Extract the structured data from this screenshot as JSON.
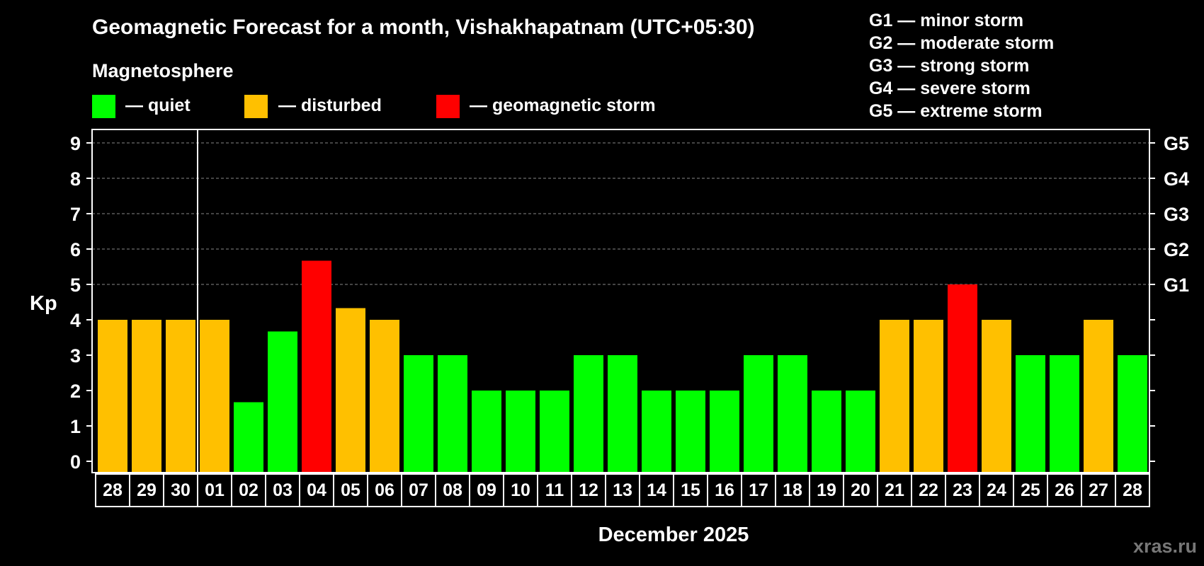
{
  "title": "Geomagnetic Forecast for a month, Vishakhapatnam (UTC+05:30)",
  "subtitle": "Magnetosphere",
  "legend": [
    {
      "label": "— quiet",
      "color": "#00ff00"
    },
    {
      "label": "— disturbed",
      "color": "#ffc000"
    },
    {
      "label": "— geomagnetic storm",
      "color": "#ff0000"
    }
  ],
  "storm_scale": [
    "G1 — minor storm",
    "G2 — moderate storm",
    "G3 — strong storm",
    "G4 — severe storm",
    "G5 — extreme storm"
  ],
  "watermark": "xras.ru",
  "colors": {
    "quiet": "#00ff00",
    "disturbed": "#ffc000",
    "storm": "#ff0000",
    "background": "#000000",
    "grid": "#888888"
  },
  "chart_data": {
    "type": "bar",
    "ylabel": "Kp",
    "xlabel": "December 2025",
    "ylim": [
      0,
      9
    ],
    "yticks": [
      "0",
      "1",
      "2",
      "3",
      "4",
      "5",
      "6",
      "7",
      "8",
      "9"
    ],
    "right_ticks": [
      {
        "value": 5,
        "label": "G1"
      },
      {
        "value": 6,
        "label": "G2"
      },
      {
        "value": 7,
        "label": "G3"
      },
      {
        "value": 8,
        "label": "G4"
      },
      {
        "value": 9,
        "label": "G5"
      }
    ],
    "grid": true,
    "month_divider_after": "30",
    "categories": [
      "28",
      "29",
      "30",
      "01",
      "02",
      "03",
      "04",
      "05",
      "06",
      "07",
      "08",
      "09",
      "10",
      "11",
      "12",
      "13",
      "14",
      "15",
      "16",
      "17",
      "18",
      "19",
      "20",
      "21",
      "22",
      "23",
      "24",
      "25",
      "26",
      "27",
      "28"
    ],
    "values": [
      4,
      4,
      4,
      4,
      1.67,
      3.67,
      5.67,
      4.33,
      4,
      3,
      3,
      2,
      2,
      2,
      3,
      3,
      2,
      2,
      2,
      3,
      3,
      2,
      2,
      4,
      4,
      5,
      4,
      3,
      3,
      4,
      3
    ],
    "levels": [
      "disturbed",
      "disturbed",
      "disturbed",
      "disturbed",
      "quiet",
      "quiet",
      "storm",
      "disturbed",
      "disturbed",
      "quiet",
      "quiet",
      "quiet",
      "quiet",
      "quiet",
      "quiet",
      "quiet",
      "quiet",
      "quiet",
      "quiet",
      "quiet",
      "quiet",
      "quiet",
      "quiet",
      "disturbed",
      "disturbed",
      "storm",
      "disturbed",
      "quiet",
      "quiet",
      "disturbed",
      "quiet"
    ]
  }
}
